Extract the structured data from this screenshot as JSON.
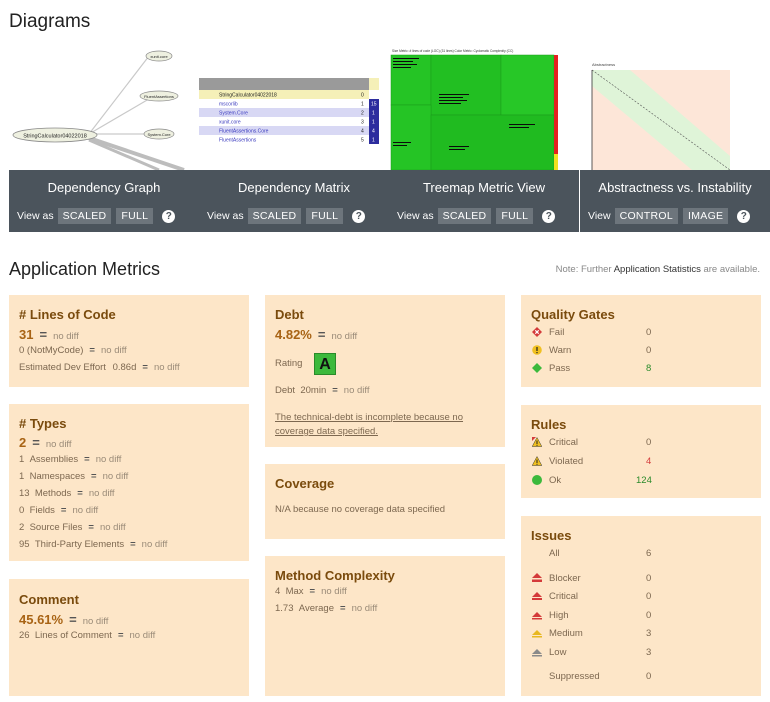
{
  "diagrams": {
    "title": "Diagrams",
    "items": [
      {
        "title": "Dependency Graph",
        "view_label": "View as",
        "opt1": "SCALED",
        "opt2": "FULL",
        "help": "?"
      },
      {
        "title": "Dependency Matrix",
        "view_label": "View as",
        "opt1": "SCALED",
        "opt2": "FULL",
        "help": "?"
      },
      {
        "title": "Treemap Metric View",
        "view_label": "View as",
        "opt1": "SCALED",
        "opt2": "FULL",
        "help": "?"
      },
      {
        "title": "Abstractness vs. Instability",
        "view_label": "View",
        "opt1": "CONTROL",
        "opt2": "IMAGE",
        "help": "?"
      }
    ],
    "graph_nodes": {
      "center": "StringCalculator04022018",
      "n1": "xunit.core",
      "n2": "FluentAssertions",
      "n3": "System.Core"
    },
    "matrix_rows": [
      "StringCalculator04022018",
      "mscorlib",
      "System.Core",
      "xunit.core",
      "FluentAssertions.Core",
      "FluentAssertions"
    ],
    "matrix_vals": [
      "0",
      "1",
      "2",
      "3",
      "4",
      "5"
    ],
    "matrix_col": [
      "15",
      "1",
      "1",
      "4",
      "1"
    ],
    "treemap_header": "Size Metric: # lines of code (LOC) (31 lines)    Color Metric: Cyclomatic Complexity (CC)",
    "ai_label": "Abstractness"
  },
  "metrics": {
    "title": "Application Metrics",
    "note_pre": "Note: Further",
    "note_link": "Application Statistics",
    "note_post": "are available.",
    "no_diff": "no diff",
    "eq": "=",
    "loc": {
      "title": "# Lines of Code",
      "value": "31",
      "notmycode": "0  (NotMyCode)",
      "effort_label": "Estimated Dev Effort",
      "effort_value": "0.86d"
    },
    "types": {
      "title": "# Types",
      "value": "2",
      "rows": [
        {
          "n": "1",
          "label": "Assemblies"
        },
        {
          "n": "1",
          "label": "Namespaces"
        },
        {
          "n": "13",
          "label": "Methods"
        },
        {
          "n": "0",
          "label": "Fields"
        },
        {
          "n": "2",
          "label": "Source Files"
        },
        {
          "n": "95",
          "label": "Third-Party Elements"
        }
      ]
    },
    "comment": {
      "title": "Comment",
      "value": "45.61%",
      "loc_n": "26",
      "loc_label": "Lines of Comment"
    },
    "debt": {
      "title": "Debt",
      "value": "4.82%",
      "rating_label": "Rating",
      "rating": "A",
      "debt_label": "Debt",
      "debt_time": "20min",
      "warning": "The technical-debt is incomplete because no coverage data specified."
    },
    "coverage": {
      "title": "Coverage",
      "text": "N/A because no coverage data specified"
    },
    "complexity": {
      "title": "Method Complexity",
      "max_n": "4",
      "max_label": "Max",
      "avg_n": "1.73",
      "avg_label": "Average"
    },
    "quality_gates": {
      "title": "Quality Gates",
      "rows": [
        {
          "label": "Fail",
          "count": "0"
        },
        {
          "label": "Warn",
          "count": "0"
        },
        {
          "label": "Pass",
          "count": "8"
        }
      ]
    },
    "rules": {
      "title": "Rules",
      "rows": [
        {
          "label": "Critical",
          "count": "0"
        },
        {
          "label": "Violated",
          "count": "4"
        },
        {
          "label": "Ok",
          "count": "124"
        }
      ]
    },
    "issues": {
      "title": "Issues",
      "all_label": "All",
      "all_count": "6",
      "rows": [
        {
          "label": "Blocker",
          "count": "0"
        },
        {
          "label": "Critical",
          "count": "0"
        },
        {
          "label": "High",
          "count": "0"
        },
        {
          "label": "Medium",
          "count": "3"
        },
        {
          "label": "Low",
          "count": "3"
        }
      ],
      "suppressed_label": "Suppressed",
      "suppressed_count": "0"
    }
  },
  "colors": {
    "card": "#fde6c8",
    "panel": "#4b545c",
    "accent": "#a86314",
    "pass": "#3cb93c",
    "fail": "#d43a3a"
  }
}
